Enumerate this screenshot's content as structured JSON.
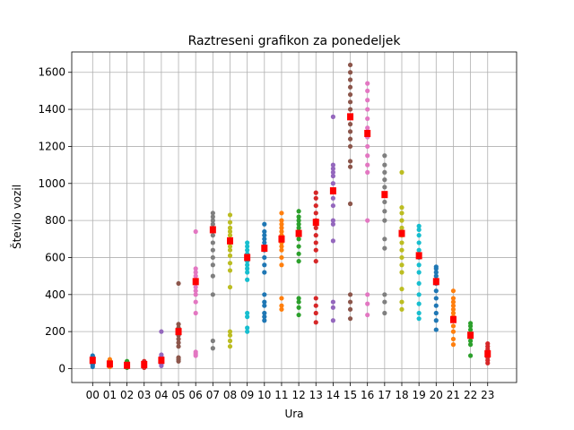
{
  "chart_data": {
    "type": "scatter",
    "title": "Raztreseni grafikon za ponedeljek",
    "xlabel": "Ura",
    "ylabel": "Število vozil",
    "ylim": [
      -75,
      1710
    ],
    "yticks": [
      0,
      200,
      400,
      600,
      800,
      1000,
      1200,
      1400,
      1600
    ],
    "grid": true,
    "mean_color": "#ff0000",
    "categories": [
      "00",
      "01",
      "02",
      "03",
      "04",
      "05",
      "06",
      "07",
      "08",
      "09",
      "10",
      "11",
      "12",
      "13",
      "14",
      "15",
      "16",
      "17",
      "18",
      "19",
      "20",
      "21",
      "22",
      "23"
    ],
    "colors": [
      "#1f77b4",
      "#ff7f0e",
      "#2ca02c",
      "#d62728",
      "#9467bd",
      "#8c564b",
      "#e377c2",
      "#7f7f7f",
      "#bcbd22",
      "#17becf",
      "#1f77b4",
      "#ff7f0e",
      "#2ca02c",
      "#d62728",
      "#9467bd",
      "#8c564b",
      "#e377c2",
      "#7f7f7f",
      "#bcbd22",
      "#17becf",
      "#1f77b4",
      "#ff7f0e",
      "#2ca02c",
      "#d62728"
    ],
    "means": [
      45,
      25,
      18,
      22,
      45,
      200,
      470,
      750,
      690,
      600,
      650,
      700,
      730,
      790,
      960,
      1360,
      1270,
      940,
      730,
      610,
      470,
      265,
      180,
      80
    ],
    "series": [
      {
        "hour": "00",
        "values": [
          10,
          20,
          25,
          30,
          35,
          40,
          45,
          50,
          55,
          60,
          65,
          70
        ]
      },
      {
        "hour": "01",
        "values": [
          10,
          15,
          20,
          25,
          30,
          35,
          40,
          45,
          50
        ]
      },
      {
        "hour": "02",
        "values": [
          5,
          10,
          15,
          20,
          25,
          30,
          35,
          40
        ]
      },
      {
        "hour": "03",
        "values": [
          5,
          10,
          15,
          20,
          25,
          30,
          35,
          40
        ]
      },
      {
        "hour": "04",
        "values": [
          15,
          25,
          35,
          45,
          55,
          65,
          75,
          200
        ]
      },
      {
        "hour": "05",
        "values": [
          40,
          50,
          60,
          120,
          140,
          160,
          180,
          200,
          220,
          240,
          460
        ]
      },
      {
        "hour": "06",
        "values": [
          70,
          80,
          90,
          300,
          360,
          400,
          420,
          440,
          460,
          480,
          500,
          520,
          540,
          740
        ]
      },
      {
        "hour": "07",
        "values": [
          110,
          150,
          400,
          500,
          560,
          600,
          640,
          680,
          720,
          760,
          780,
          800,
          820,
          840
        ]
      },
      {
        "hour": "08",
        "values": [
          120,
          150,
          180,
          200,
          440,
          530,
          570,
          610,
          640,
          660,
          680,
          700,
          720,
          740,
          760,
          790,
          830
        ]
      },
      {
        "hour": "09",
        "values": [
          200,
          220,
          280,
          300,
          480,
          520,
          540,
          560,
          580,
          600,
          620,
          640,
          660,
          680
        ]
      },
      {
        "hour": "10",
        "values": [
          260,
          280,
          300,
          340,
          360,
          400,
          520,
          560,
          600,
          640,
          660,
          680,
          700,
          720,
          740,
          780
        ]
      },
      {
        "hour": "11",
        "values": [
          320,
          340,
          380,
          560,
          600,
          640,
          660,
          680,
          700,
          720,
          740,
          760,
          780,
          800,
          840
        ]
      },
      {
        "hour": "12",
        "values": [
          290,
          330,
          360,
          380,
          580,
          620,
          660,
          700,
          720,
          740,
          760,
          780,
          800,
          820,
          850
        ]
      },
      {
        "hour": "13",
        "values": [
          250,
          300,
          340,
          380,
          580,
          640,
          680,
          720,
          760,
          800,
          840,
          880,
          920,
          950
        ]
      },
      {
        "hour": "14",
        "values": [
          260,
          330,
          360,
          690,
          780,
          800,
          880,
          920,
          960,
          1000,
          1040,
          1060,
          1080,
          1100,
          1360
        ]
      },
      {
        "hour": "15",
        "values": [
          270,
          320,
          360,
          400,
          890,
          1090,
          1120,
          1200,
          1240,
          1280,
          1320,
          1360,
          1400,
          1440,
          1480,
          1520,
          1560,
          1600,
          1640
        ]
      },
      {
        "hour": "16",
        "values": [
          290,
          350,
          400,
          800,
          1060,
          1100,
          1150,
          1200,
          1250,
          1300,
          1350,
          1400,
          1450,
          1500,
          1540
        ]
      },
      {
        "hour": "17",
        "values": [
          300,
          360,
          400,
          650,
          700,
          800,
          850,
          900,
          940,
          980,
          1020,
          1060,
          1100,
          1150
        ]
      },
      {
        "hour": "18",
        "values": [
          320,
          360,
          430,
          520,
          560,
          600,
          640,
          680,
          720,
          760,
          800,
          840,
          870,
          1060
        ]
      },
      {
        "hour": "19",
        "values": [
          270,
          300,
          350,
          400,
          460,
          520,
          560,
          600,
          640,
          680,
          720,
          750,
          770
        ]
      },
      {
        "hour": "20",
        "values": [
          210,
          260,
          300,
          340,
          380,
          420,
          460,
          500,
          520,
          540,
          550
        ]
      },
      {
        "hour": "21",
        "values": [
          130,
          160,
          200,
          230,
          260,
          280,
          300,
          320,
          340,
          360,
          380,
          420
        ]
      },
      {
        "hour": "22",
        "values": [
          70,
          130,
          150,
          170,
          190,
          210,
          230,
          245
        ]
      },
      {
        "hour": "23",
        "values": [
          30,
          45,
          60,
          75,
          90,
          105,
          120,
          135
        ]
      }
    ]
  }
}
